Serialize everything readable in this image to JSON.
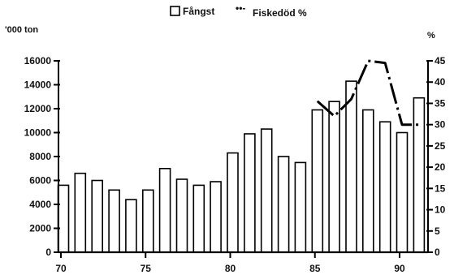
{
  "chart_data": {
    "type": "bar",
    "left_unit_label": "'000 ton",
    "right_unit_label": "%",
    "legend": [
      {
        "label": "Fångst",
        "marker": "bar"
      },
      {
        "label": "Fiskedöd %",
        "marker": "dash-dot-line"
      }
    ],
    "x_tick_labels": [
      "70",
      "75",
      "80",
      "85",
      "90"
    ],
    "x_tick_values": [
      1970,
      1975,
      1980,
      1985,
      1990
    ],
    "y_left": {
      "range": [
        0,
        16000
      ],
      "ticks": [
        0,
        2000,
        4000,
        6000,
        8000,
        10000,
        12000,
        14000,
        16000
      ],
      "tick_labels": [
        "0",
        "2000",
        "4000",
        "6000",
        "8000",
        "10000",
        "12000",
        "14000",
        "16000"
      ]
    },
    "y_right": {
      "range": [
        0,
        45
      ],
      "ticks": [
        0,
        5,
        10,
        15,
        20,
        25,
        30,
        35,
        40,
        45
      ],
      "tick_labels": [
        "0",
        "5",
        "10",
        "15",
        "20",
        "25",
        "30",
        "35",
        "40",
        "45"
      ]
    },
    "grid": false,
    "series": [
      {
        "name": "Fångst",
        "kind": "bar",
        "axis": "left",
        "color": "#ffffff",
        "edge_color": "#000000",
        "x": [
          1970,
          1971,
          1972,
          1973,
          1974,
          1975,
          1976,
          1977,
          1978,
          1979,
          1980,
          1981,
          1982,
          1983,
          1984,
          1985,
          1986,
          1987,
          1988,
          1989,
          1990,
          1991
        ],
        "values": [
          5600,
          6600,
          6000,
          5200,
          4400,
          5200,
          7000,
          6100,
          5600,
          5900,
          8300,
          9900,
          10300,
          8000,
          7500,
          11900,
          12600,
          14300,
          11900,
          10900,
          10000,
          12900
        ]
      },
      {
        "name": "Fiskedöd %",
        "kind": "line",
        "axis": "right",
        "color": "#000000",
        "style": "dash-dot",
        "x": [
          1985,
          1986,
          1987,
          1988,
          1989,
          1990,
          1991
        ],
        "values": [
          35.5,
          32,
          36,
          45,
          44.5,
          30,
          30
        ]
      }
    ]
  }
}
